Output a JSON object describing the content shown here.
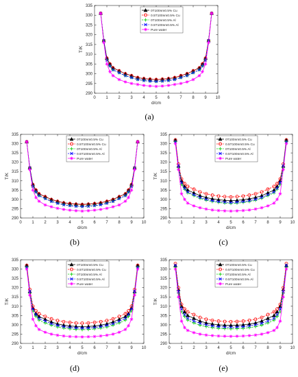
{
  "chart_data": [
    {
      "panel_label": "(a)",
      "type": "line",
      "xlabel": "d/cm",
      "ylabel": "T/K",
      "xlim": [
        0,
        10
      ],
      "ylim": [
        290,
        335
      ],
      "xticks": [
        0,
        1,
        2,
        3,
        4,
        5,
        6,
        7,
        8,
        9,
        10
      ],
      "yticks": [
        290,
        295,
        300,
        305,
        310,
        315,
        320,
        325,
        330,
        335
      ],
      "grid": false,
      "legend_position": "top",
      "x": [
        0.5,
        0.75,
        1.0,
        1.25,
        1.5,
        2.0,
        2.5,
        3.0,
        3.5,
        4.0,
        4.5,
        5.0,
        5.5,
        6.0,
        6.5,
        7.0,
        7.5,
        8.0,
        8.5,
        8.75,
        9.0,
        9.25,
        9.5
      ],
      "series": [
        {
          "name": "0T100nm0.5% Cu",
          "color": "#000000",
          "marker": "triangle",
          "dash": "solid",
          "values": [
            331,
            317,
            308,
            305,
            303,
            301.5,
            300,
            299,
            298,
            297.5,
            297.2,
            297,
            297.2,
            297.5,
            298,
            299,
            300,
            301.5,
            303,
            305,
            308,
            317,
            331
          ]
        },
        {
          "name": "0.5T100nm0.5% Cu",
          "color": "#ff0000",
          "marker": "circle",
          "dash": "dash",
          "values": [
            331,
            317,
            308,
            305,
            303,
            301.5,
            300,
            299,
            298,
            297.5,
            297.2,
            297,
            297.2,
            297.5,
            298,
            299,
            300,
            301.5,
            303,
            305,
            308,
            317,
            331
          ]
        },
        {
          "name": "0T100nm0.5% Al",
          "color": "#00cc00",
          "marker": "plus",
          "dash": "dash",
          "values": [
            331,
            317,
            307,
            304,
            302,
            300.5,
            299,
            298,
            297,
            296.5,
            296.2,
            296,
            296.2,
            296.5,
            297,
            298,
            299,
            300.5,
            302,
            304,
            307,
            317,
            331
          ]
        },
        {
          "name": "0.5T100nm0.5% Al",
          "color": "#0000ff",
          "marker": "x",
          "dash": "dash",
          "values": [
            331,
            317,
            307,
            304,
            302,
            300.5,
            299,
            298,
            297,
            296.5,
            296.2,
            296,
            296.2,
            296.5,
            297,
            298,
            299,
            300.5,
            302,
            304,
            307,
            317,
            331
          ]
        },
        {
          "name": "Pure water",
          "color": "#ff00ff",
          "marker": "star",
          "dash": "solid",
          "values": [
            331,
            316,
            305,
            301,
            299,
            297,
            295.8,
            295,
            294.5,
            294,
            293.7,
            293.5,
            293.7,
            294,
            294.5,
            295,
            295.8,
            297,
            299,
            301,
            305,
            316,
            331
          ]
        }
      ]
    },
    {
      "panel_label": "(b)",
      "type": "line",
      "xlabel": "d/cm",
      "ylabel": "T/K",
      "xlim": [
        0,
        10
      ],
      "ylim": [
        290,
        335
      ],
      "xticks": [
        0,
        1,
        2,
        3,
        4,
        5,
        6,
        7,
        8,
        9,
        10
      ],
      "yticks": [
        290,
        295,
        300,
        305,
        310,
        315,
        320,
        325,
        330,
        335
      ],
      "grid": false,
      "legend_position": "top",
      "x": [
        0.5,
        0.75,
        1.0,
        1.25,
        1.5,
        2.0,
        2.5,
        3.0,
        3.5,
        4.0,
        4.5,
        5.0,
        5.5,
        6.0,
        6.5,
        7.0,
        7.5,
        8.0,
        8.5,
        8.75,
        9.0,
        9.25,
        9.5
      ],
      "series": [
        {
          "name": "0T100nm0.5% Cu",
          "color": "#000000",
          "marker": "triangle",
          "dash": "solid",
          "values": [
            331,
            317,
            308,
            305,
            303,
            301.5,
            300,
            299,
            298.2,
            297.8,
            297.5,
            297.3,
            297.5,
            297.8,
            298.2,
            299,
            300,
            301.5,
            303,
            305,
            308,
            317,
            331
          ]
        },
        {
          "name": "0.5T100nm0.5% Cu",
          "color": "#ff0000",
          "marker": "circle",
          "dash": "dash",
          "values": [
            331,
            317,
            308,
            305,
            303,
            301.4,
            299.9,
            298.9,
            298.1,
            297.7,
            297.4,
            297.2,
            297.4,
            297.7,
            298.1,
            298.9,
            299.9,
            301.4,
            303,
            305,
            308,
            317,
            331
          ]
        },
        {
          "name": "0T100nm0.5% Al",
          "color": "#00cc00",
          "marker": "plus",
          "dash": "dash",
          "values": [
            331,
            317,
            307,
            304,
            302,
            300.5,
            299,
            298,
            297.2,
            296.7,
            296.4,
            296.2,
            296.4,
            296.7,
            297.2,
            298,
            299,
            300.5,
            302,
            304,
            307,
            317,
            331
          ]
        },
        {
          "name": "0.5T100nm0.5% Al",
          "color": "#0000ff",
          "marker": "x",
          "dash": "dash",
          "values": [
            331,
            317,
            307,
            304,
            302,
            300.4,
            298.9,
            297.9,
            297.1,
            296.6,
            296.3,
            296.1,
            296.3,
            296.6,
            297.1,
            297.9,
            298.9,
            300.4,
            302,
            304,
            307,
            317,
            331
          ]
        },
        {
          "name": "Pure water",
          "color": "#ff00ff",
          "marker": "star",
          "dash": "solid",
          "values": [
            331,
            316,
            305,
            301,
            299,
            297,
            296,
            295.2,
            294.6,
            294.2,
            293.9,
            293.7,
            293.9,
            294.2,
            294.6,
            295.2,
            296,
            297,
            299,
            301,
            305,
            316,
            331
          ]
        }
      ]
    },
    {
      "panel_label": "(c)",
      "type": "line",
      "xlabel": "d/cm",
      "ylabel": "T/K",
      "xlim": [
        0,
        10
      ],
      "ylim": [
        290,
        335
      ],
      "xticks": [
        0,
        1,
        2,
        3,
        4,
        5,
        6,
        7,
        8,
        9,
        10
      ],
      "yticks": [
        290,
        295,
        300,
        305,
        310,
        315,
        320,
        325,
        330,
        335
      ],
      "grid": false,
      "legend_position": "top",
      "x": [
        0.5,
        0.75,
        1.0,
        1.25,
        1.5,
        2.0,
        2.5,
        3.0,
        3.5,
        4.0,
        4.5,
        5.0,
        5.5,
        6.0,
        6.5,
        7.0,
        7.5,
        8.0,
        8.5,
        8.75,
        9.0,
        9.25,
        9.5
      ],
      "series": [
        {
          "name": "0T100nm0.5% Cu",
          "color": "#000000",
          "marker": "triangle",
          "dash": "solid",
          "values": [
            332,
            318,
            310,
            307,
            305,
            303.5,
            302,
            301,
            300.3,
            299.8,
            299.5,
            299.3,
            299.5,
            299.8,
            300.3,
            301,
            302,
            303.5,
            305,
            307,
            310,
            318,
            332
          ]
        },
        {
          "name": "0.5T100nm0.5% Cu",
          "color": "#ff0000",
          "marker": "circle",
          "dash": "dash",
          "values": [
            332,
            319,
            311,
            308.5,
            307,
            305.5,
            304,
            303,
            302.3,
            301.8,
            301.5,
            301.3,
            301.5,
            301.8,
            302.3,
            303,
            304,
            305.5,
            307,
            308.5,
            311,
            319,
            332
          ]
        },
        {
          "name": "0T100nm0.5% Al",
          "color": "#00cc00",
          "marker": "plus",
          "dash": "dash",
          "values": [
            331,
            317,
            308,
            305.5,
            303.5,
            302,
            300.5,
            299.5,
            298.8,
            298.3,
            298,
            297.8,
            298,
            298.3,
            298.8,
            299.5,
            300.5,
            302,
            303.5,
            305.5,
            308,
            317,
            331
          ]
        },
        {
          "name": "0.5T100nm0.5% Al",
          "color": "#0000ff",
          "marker": "x",
          "dash": "dash",
          "values": [
            331,
            318,
            309,
            306,
            304,
            302.5,
            301,
            300,
            299.3,
            298.8,
            298.5,
            298.3,
            298.5,
            298.8,
            299.3,
            300,
            301,
            302.5,
            304,
            306,
            309,
            318,
            331
          ]
        },
        {
          "name": "Pure water",
          "color": "#ff00ff",
          "marker": "star",
          "dash": "solid",
          "values": [
            330,
            316,
            303,
            300,
            298,
            296.5,
            295.5,
            294.8,
            294.3,
            294,
            293.8,
            293.7,
            293.8,
            294,
            294.3,
            294.8,
            295.5,
            296.5,
            298,
            300,
            303,
            316,
            330
          ]
        }
      ]
    },
    {
      "panel_label": "(d)",
      "type": "line",
      "xlabel": "d/cm",
      "ylabel": "T/K",
      "xlim": [
        0,
        10
      ],
      "ylim": [
        290,
        335
      ],
      "xticks": [
        0,
        1,
        2,
        3,
        4,
        5,
        6,
        7,
        8,
        9,
        10
      ],
      "yticks": [
        290,
        295,
        300,
        305,
        310,
        315,
        320,
        325,
        330,
        335
      ],
      "grid": false,
      "legend_position": "top",
      "x": [
        0.5,
        0.75,
        1.0,
        1.25,
        1.5,
        2.0,
        2.5,
        3.0,
        3.5,
        4.0,
        4.5,
        5.0,
        5.5,
        6.0,
        6.5,
        7.0,
        7.5,
        8.0,
        8.5,
        8.75,
        9.0,
        9.25,
        9.5
      ],
      "series": [
        {
          "name": "0T100nm0.5% Cu",
          "color": "#000000",
          "marker": "triangle",
          "dash": "solid",
          "values": [
            332,
            318,
            309,
            306,
            304.5,
            303,
            301.5,
            300.5,
            299.8,
            299.4,
            299.1,
            299,
            299.1,
            299.4,
            299.8,
            300.5,
            301.5,
            303,
            304.5,
            306,
            309,
            318,
            332
          ]
        },
        {
          "name": "0.5T100nm0.5% Cu",
          "color": "#ff0000",
          "marker": "circle",
          "dash": "dash",
          "values": [
            332,
            319,
            310,
            307.5,
            306,
            304.5,
            303.2,
            302.3,
            301.7,
            301.3,
            301,
            300.9,
            301,
            301.3,
            301.7,
            302.3,
            303.2,
            304.5,
            306,
            307.5,
            310,
            319,
            332
          ]
        },
        {
          "name": "0T100nm0.5% Al",
          "color": "#00cc00",
          "marker": "plus",
          "dash": "dash",
          "values": [
            331,
            317,
            307.5,
            304.5,
            302.5,
            301,
            299.8,
            298.8,
            298.2,
            297.8,
            297.5,
            297.4,
            297.5,
            297.8,
            298.2,
            298.8,
            299.8,
            301,
            302.5,
            304.5,
            307.5,
            317,
            331
          ]
        },
        {
          "name": "0.5T100nm0.5% Al",
          "color": "#0000ff",
          "marker": "x",
          "dash": "dash",
          "values": [
            331,
            318,
            308.5,
            305.5,
            303.5,
            302,
            300.6,
            299.7,
            299,
            298.6,
            298.3,
            298.2,
            298.3,
            298.6,
            299,
            299.7,
            300.6,
            302,
            303.5,
            305.5,
            308.5,
            318,
            331
          ]
        },
        {
          "name": "Pure water",
          "color": "#ff00ff",
          "marker": "star",
          "dash": "solid",
          "values": [
            330,
            316,
            303,
            299.5,
            297.5,
            296,
            295,
            294.4,
            294,
            293.7,
            293.6,
            293.5,
            293.6,
            293.7,
            294,
            294.4,
            295,
            296,
            297.5,
            299.5,
            303,
            316,
            330
          ]
        }
      ]
    },
    {
      "panel_label": "(e)",
      "type": "line",
      "xlabel": "d/cm",
      "ylabel": "T/K",
      "xlim": [
        0,
        10
      ],
      "ylim": [
        290,
        335
      ],
      "xticks": [
        0,
        1,
        2,
        3,
        4,
        5,
        6,
        7,
        8,
        9,
        10
      ],
      "yticks": [
        290,
        295,
        300,
        305,
        310,
        315,
        320,
        325,
        330,
        335
      ],
      "grid": false,
      "legend_position": "top",
      "x": [
        0.5,
        0.75,
        1.0,
        1.25,
        1.5,
        2.0,
        2.5,
        3.0,
        3.5,
        4.0,
        4.5,
        5.0,
        5.5,
        6.0,
        6.5,
        7.0,
        7.5,
        8.0,
        8.5,
        8.75,
        9.0,
        9.25,
        9.5
      ],
      "series": [
        {
          "name": "0T100nm0.5% Cu",
          "color": "#000000",
          "marker": "triangle",
          "dash": "solid",
          "values": [
            332,
            319,
            310,
            307,
            305,
            303.5,
            302,
            301,
            300.4,
            300,
            299.8,
            299.7,
            299.8,
            300,
            300.4,
            301,
            302,
            303.5,
            305,
            307,
            310,
            319,
            332
          ]
        },
        {
          "name": "0.5T100nm0.5% Cu",
          "color": "#ff0000",
          "marker": "circle",
          "dash": "dash",
          "values": [
            333,
            320,
            311,
            308.5,
            307,
            305.5,
            304,
            303,
            302.4,
            302,
            301.8,
            301.7,
            301.8,
            302,
            302.4,
            303,
            304,
            305.5,
            307,
            308.5,
            311,
            320,
            333
          ]
        },
        {
          "name": "0T100nm0.5% Al",
          "color": "#00cc00",
          "marker": "plus",
          "dash": "dash",
          "values": [
            331,
            317,
            307,
            304.5,
            302.5,
            301,
            299.8,
            299,
            298.5,
            298.1,
            297.9,
            297.8,
            297.9,
            298.1,
            298.5,
            299,
            299.8,
            301,
            302.5,
            304.5,
            307,
            317,
            331
          ]
        },
        {
          "name": "0.5T100nm0.5% Al",
          "color": "#0000ff",
          "marker": "x",
          "dash": "dash",
          "values": [
            332,
            318,
            308.5,
            305.5,
            303.5,
            302,
            300.8,
            300,
            299.4,
            299,
            298.8,
            298.7,
            298.8,
            299,
            299.4,
            300,
            300.8,
            302,
            303.5,
            305.5,
            308.5,
            318,
            332
          ]
        },
        {
          "name": "Pure water",
          "color": "#ff00ff",
          "marker": "star",
          "dash": "solid",
          "values": [
            330,
            315,
            302,
            298.5,
            297,
            295.8,
            295,
            294.5,
            294.2,
            294,
            293.9,
            293.8,
            293.9,
            294,
            294.2,
            294.5,
            295,
            295.8,
            297,
            298.5,
            302,
            315,
            330
          ]
        }
      ]
    }
  ]
}
